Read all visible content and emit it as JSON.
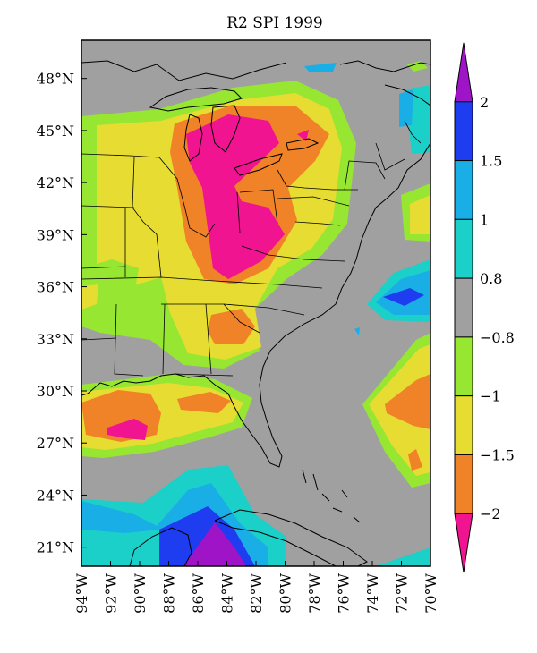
{
  "title": "R2 SPI 1999",
  "lat_labels": [
    "48°N",
    "45°N",
    "42°N",
    "39°N",
    "36°N",
    "33°N",
    "30°N",
    "27°N",
    "24°N",
    "21°N"
  ],
  "lat_values": [
    48,
    45,
    42,
    39,
    36,
    33,
    30,
    27,
    24,
    21
  ],
  "lon_labels": [
    "94°W",
    "92°W",
    "90°W",
    "88°W",
    "86°W",
    "84°W",
    "82°W",
    "80°W",
    "78°W",
    "76°W",
    "74°W",
    "72°W",
    "70°W"
  ],
  "lon_values": [
    94,
    92,
    90,
    88,
    86,
    84,
    82,
    80,
    78,
    76,
    74,
    72,
    70
  ],
  "colorbar": {
    "labels": [
      "2",
      "1.5",
      "1",
      "0.8",
      "−0.8",
      "−1",
      "−1.5",
      "−2"
    ],
    "values": [
      2,
      1.5,
      1,
      0.8,
      -0.8,
      -1,
      -1.5,
      -2
    ],
    "colors": [
      "#a014c8",
      "#1e3cf0",
      "#1aaee6",
      "#1ad0c8",
      "#a0a0a0",
      "#96e632",
      "#e6dc32",
      "#f08228",
      "#f01490"
    ]
  },
  "legend": {
    "magenta": "#f01490",
    "orange": "#f08228",
    "yellow": "#e6dc32",
    "green": "#96e632",
    "gray": "#a0a0a0",
    "cyan": "#1ad0c8",
    "blue": "#1aaee6",
    "darkblue": "#1e3cf0",
    "purple": "#a014c8"
  }
}
